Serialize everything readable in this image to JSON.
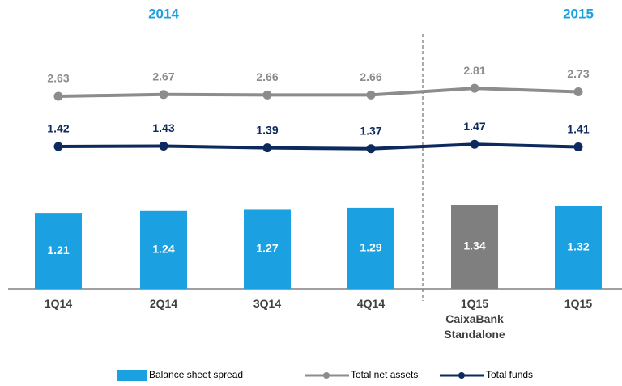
{
  "chart_data": {
    "type": "bar",
    "year_labels": [
      "2014",
      "2015"
    ],
    "year_color": "#1ba1e2",
    "categories": [
      "1Q14",
      "2Q14",
      "3Q14",
      "4Q14",
      "1Q15 CaixaBank Standalone",
      "1Q15"
    ],
    "series": [
      {
        "name": "Balance sheet spread",
        "type": "bar",
        "color": "#1ba1e2",
        "colors": [
          "#1ba1e2",
          "#1ba1e2",
          "#1ba1e2",
          "#1ba1e2",
          "#7f7f7f",
          "#1ba1e2"
        ],
        "values": [
          1.21,
          1.24,
          1.27,
          1.29,
          1.34,
          1.32
        ]
      },
      {
        "name": "Total net assets",
        "type": "line",
        "color": "#8c8c8c",
        "values": [
          2.63,
          2.67,
          2.66,
          2.66,
          2.81,
          2.73
        ]
      },
      {
        "name": "Total funds",
        "type": "line",
        "color": "#0d2a5e",
        "values": [
          1.42,
          1.43,
          1.39,
          1.37,
          1.47,
          1.41
        ]
      }
    ]
  }
}
